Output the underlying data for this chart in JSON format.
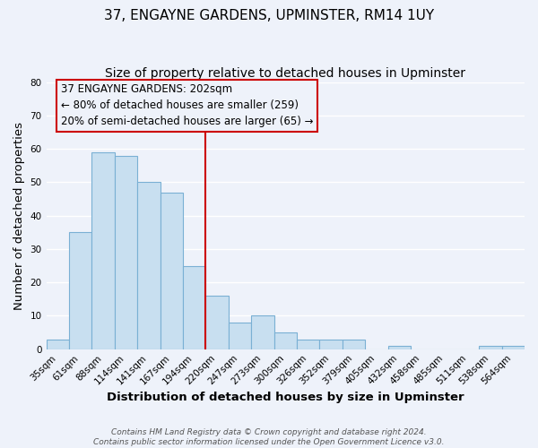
{
  "title": "37, ENGAYNE GARDENS, UPMINSTER, RM14 1UY",
  "subtitle": "Size of property relative to detached houses in Upminster",
  "xlabel": "Distribution of detached houses by size in Upminster",
  "ylabel": "Number of detached properties",
  "bar_labels": [
    "35sqm",
    "61sqm",
    "88sqm",
    "114sqm",
    "141sqm",
    "167sqm",
    "194sqm",
    "220sqm",
    "247sqm",
    "273sqm",
    "300sqm",
    "326sqm",
    "352sqm",
    "379sqm",
    "405sqm",
    "432sqm",
    "458sqm",
    "485sqm",
    "511sqm",
    "538sqm",
    "564sqm"
  ],
  "bar_heights": [
    3,
    35,
    59,
    58,
    50,
    47,
    25,
    16,
    8,
    10,
    5,
    3,
    3,
    3,
    0,
    1,
    0,
    0,
    0,
    1,
    1
  ],
  "bar_color": "#c8dff0",
  "bar_edge_color": "#7ab0d4",
  "vline_x": 6.5,
  "vline_color": "#cc0000",
  "annotation_title": "37 ENGAYNE GARDENS: 202sqm",
  "annotation_line1": "← 80% of detached houses are smaller (259)",
  "annotation_line2": "20% of semi-detached houses are larger (65) →",
  "annotation_box_edge": "#cc0000",
  "ylim": [
    0,
    80
  ],
  "yticks": [
    0,
    10,
    20,
    30,
    40,
    50,
    60,
    70,
    80
  ],
  "footer1": "Contains HM Land Registry data © Crown copyright and database right 2024.",
  "footer2": "Contains public sector information licensed under the Open Government Licence v3.0.",
  "bg_color": "#eef2fa",
  "grid_color": "#ffffff",
  "title_fontsize": 11,
  "subtitle_fontsize": 10,
  "axis_label_fontsize": 9.5,
  "tick_fontsize": 7.5,
  "annotation_fontsize": 8.5
}
